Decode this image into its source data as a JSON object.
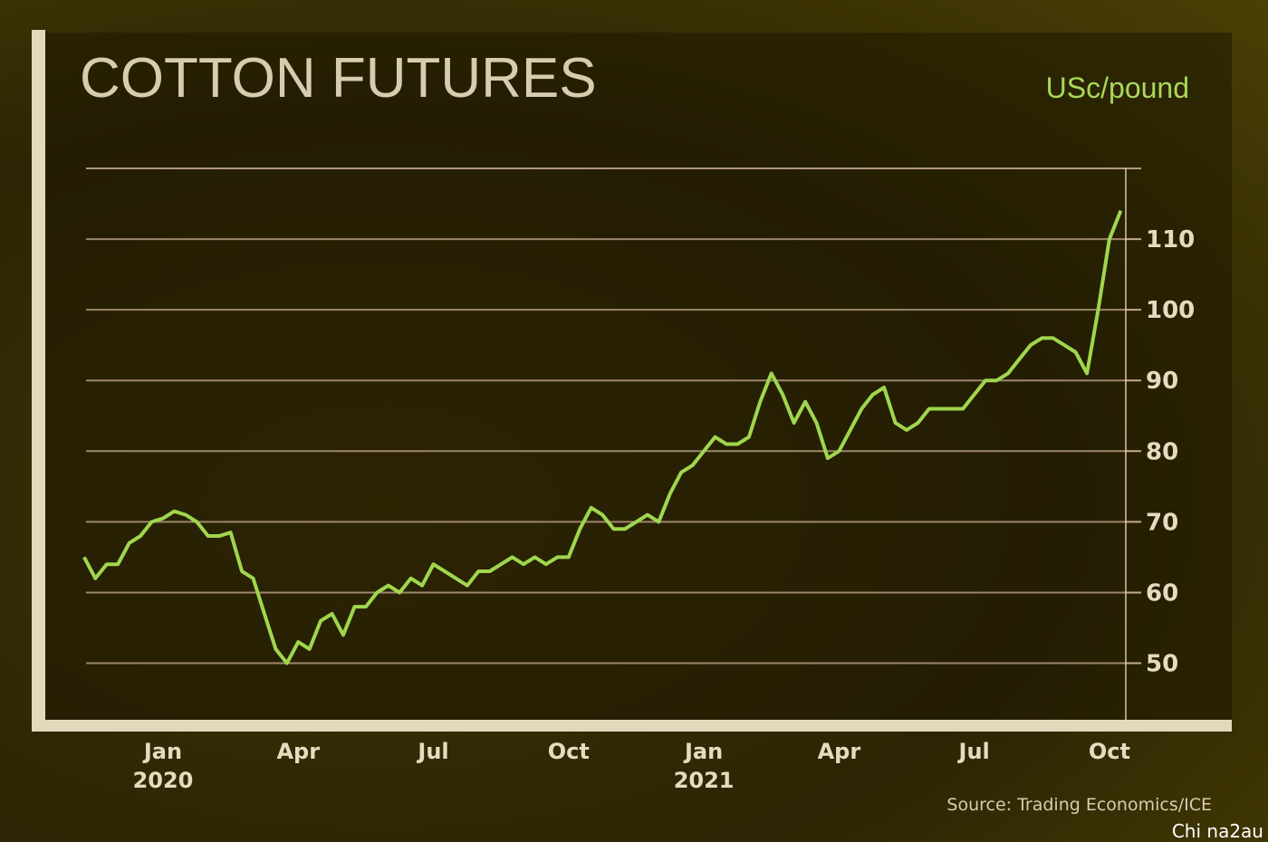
{
  "chart_data": {
    "type": "line",
    "title": "COTTON FUTURES",
    "unit_label": "USc/pound",
    "source": "Source: Trading Economics/ICE",
    "watermark": "Chi na2au",
    "categories": [
      null,
      null,
      null,
      null,
      null,
      null,
      null,
      "Jan 2020",
      null,
      null,
      null,
      null,
      null,
      null,
      null,
      null,
      null,
      null,
      null,
      "Apr",
      null,
      null,
      null,
      null,
      null,
      null,
      null,
      null,
      null,
      null,
      null,
      "Jul",
      null,
      null,
      null,
      null,
      null,
      null,
      null,
      null,
      null,
      null,
      null,
      "Oct",
      null,
      null,
      null,
      null,
      null,
      null,
      null,
      null,
      null,
      null,
      null,
      "Jan 2021",
      null,
      null,
      null,
      null,
      null,
      null,
      null,
      null,
      null,
      null,
      null,
      "Apr",
      null,
      null,
      null,
      null,
      null,
      null,
      null,
      null,
      null,
      null,
      null,
      "Jul",
      null,
      null,
      null,
      null,
      null,
      null,
      null,
      null,
      null,
      null,
      null,
      "Oct",
      null
    ],
    "series": [
      {
        "name": "Cotton futures",
        "color": "#9fd64e",
        "values": [
          65,
          62,
          64,
          64,
          67,
          68,
          70,
          70.5,
          71.5,
          71,
          70,
          68,
          68,
          68.5,
          63,
          62,
          57,
          52,
          50,
          53,
          52,
          56,
          57,
          54,
          58,
          58,
          60,
          61,
          60,
          62,
          61,
          64,
          63,
          62,
          61,
          63,
          63,
          64,
          65,
          64,
          65,
          64,
          65,
          65,
          69,
          72,
          71,
          69,
          69,
          70,
          71,
          70,
          74,
          77,
          78,
          80,
          82,
          81,
          81,
          82,
          87,
          91,
          88,
          84,
          87,
          84,
          79,
          80,
          83,
          86,
          88,
          89,
          84,
          83,
          84,
          86,
          86,
          86,
          86,
          88,
          90,
          90,
          91,
          93,
          95,
          96,
          96,
          95,
          94,
          91,
          100,
          110,
          114
        ]
      }
    ],
    "ylim": [
      42,
      120
    ],
    "yticks": [
      50,
      60,
      70,
      80,
      90,
      100,
      110
    ],
    "grid": true
  }
}
